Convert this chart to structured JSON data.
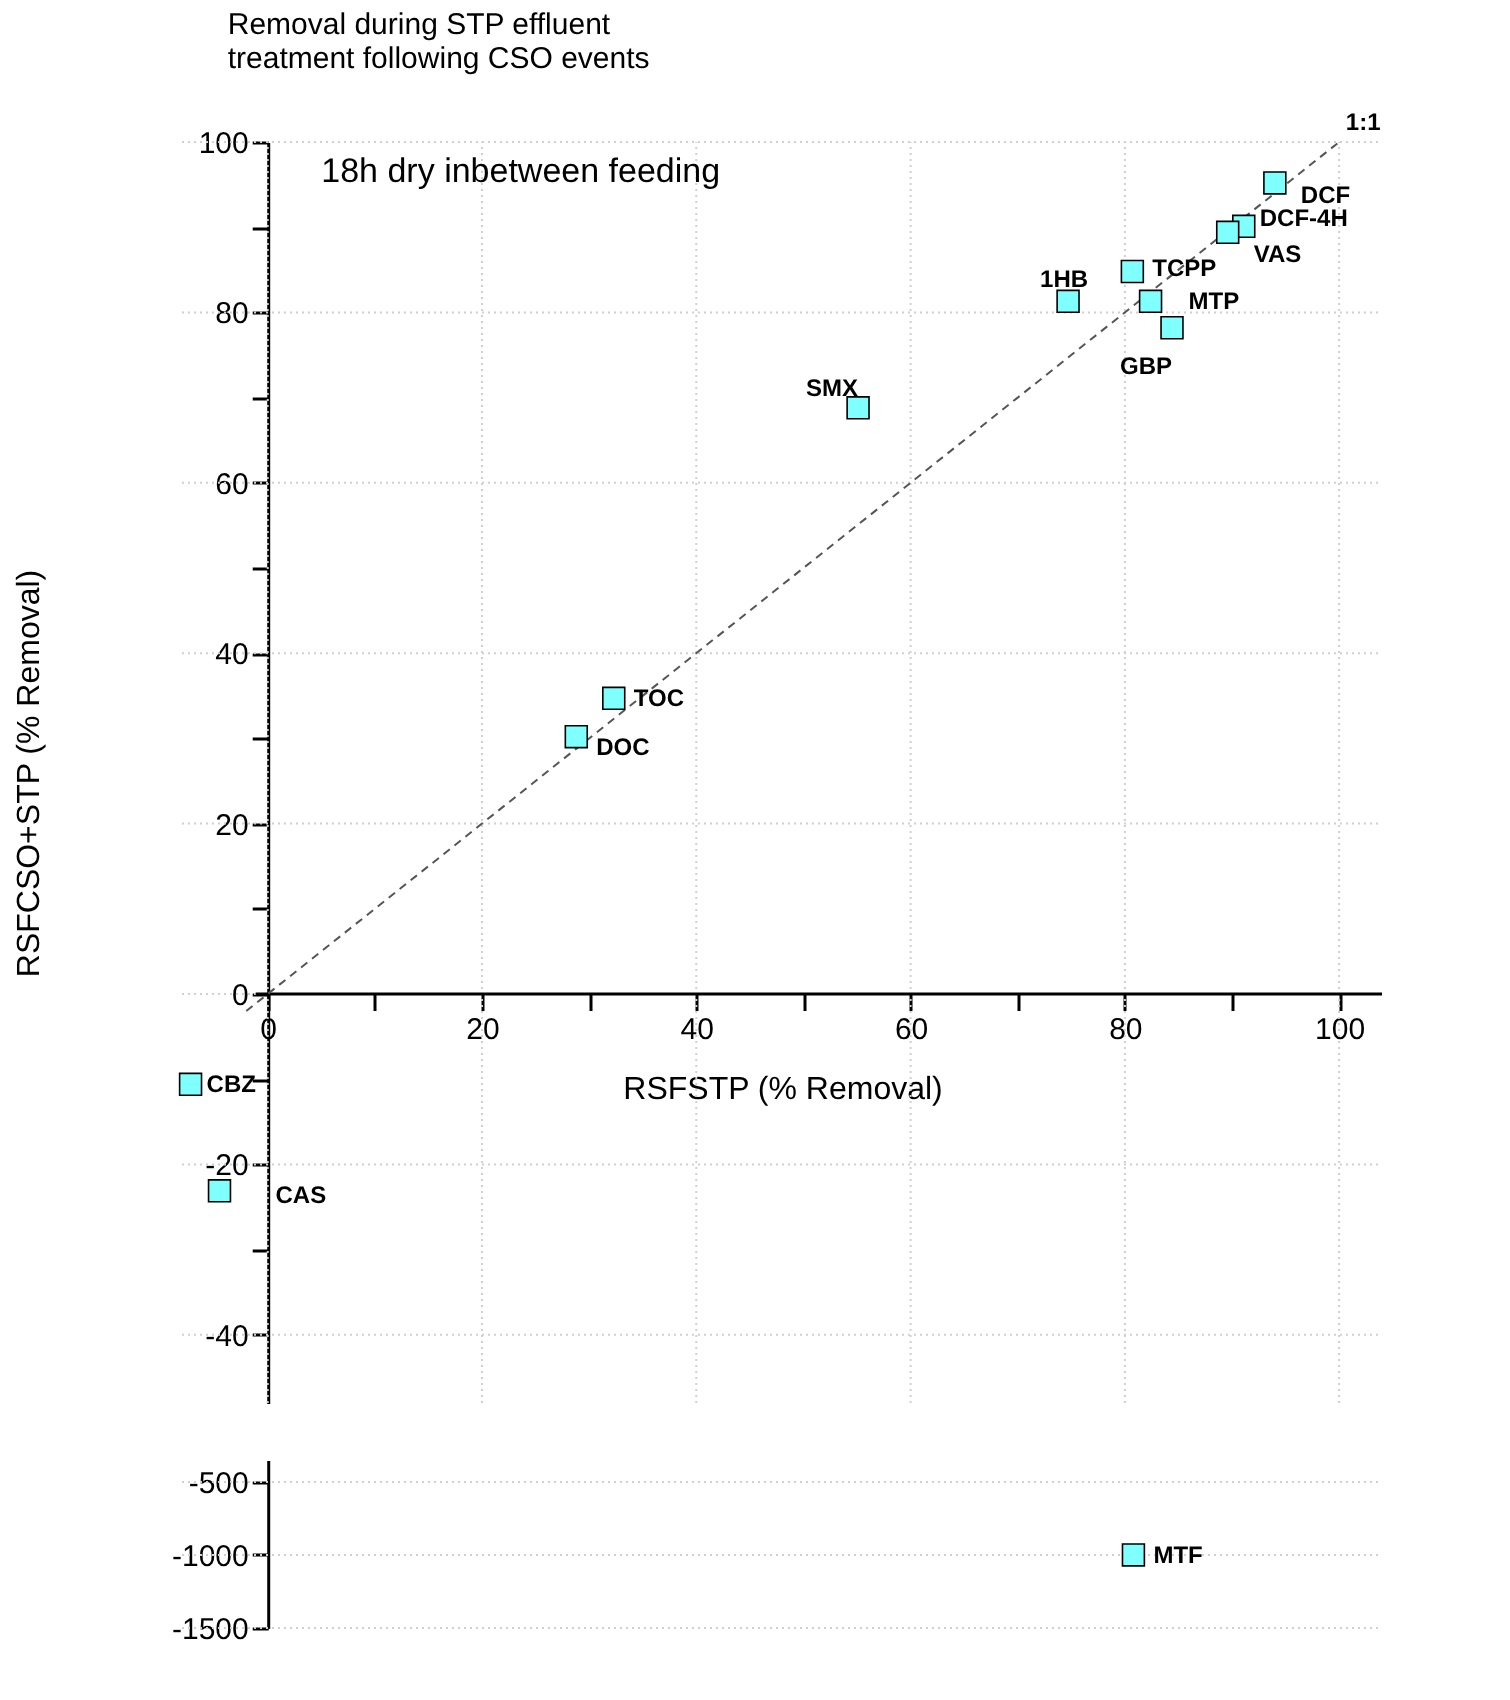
{
  "chart_data": [
    {
      "type": "scatter",
      "title": "Removal  during STP effluent\ntreatment following CSO events",
      "xlabel": "RSFSTP (% Removal)",
      "ylabel": "RSFCSO+STP (% Removal)",
      "xlim": [
        -8,
        104
      ],
      "ylim": [
        -48,
        100
      ],
      "xticks": [
        0,
        {
          "value": 10,
          "label": null
        },
        20,
        {
          "value": 30,
          "label": null
        },
        40,
        {
          "value": 50,
          "label": null
        },
        60,
        {
          "value": 70,
          "label": null
        },
        80,
        {
          "value": 90,
          "label": null
        },
        100
      ],
      "yticks": [
        -40,
        {
          "value": -30,
          "label": null
        },
        -20,
        {
          "value": -10,
          "label": null
        },
        0,
        {
          "value": 10,
          "label": null
        },
        20,
        {
          "value": 30,
          "label": null
        },
        40,
        {
          "value": 50,
          "label": null
        },
        60,
        {
          "value": 70,
          "label": null
        },
        80,
        {
          "value": 90,
          "label": null
        },
        100
      ],
      "grid": true,
      "series": [
        {
          "type": "line",
          "name": "1:1",
          "color": "#555555",
          "line_style": "dashed",
          "marker": "none",
          "x": [
            -2,
            100
          ],
          "values": [
            -2,
            100
          ]
        },
        {
          "type": "scatter",
          "color": "#80ffff",
          "marker": "square",
          "x": [
            94.0,
            91.1,
            89.6,
            80.7,
            74.7,
            82.4,
            84.4,
            55.1,
            32.3,
            28.8,
            -7.2,
            -4.5
          ],
          "values": [
            95.2,
            90.1,
            89.4,
            84.8,
            81.3,
            81.3,
            78.2,
            68.8,
            34.7,
            30.2,
            -10.6,
            -23.1
          ]
        }
      ],
      "annotations": [
        "18h dry inbetween feeding",
        {
          "text": "DCF",
          "x": 94.0,
          "y": 95.2
        },
        {
          "text": "DCF-4H",
          "x": 91.1,
          "y": 90.1
        },
        {
          "text": "VAS",
          "x": 89.6,
          "y": 89.4
        },
        {
          "text": "TCPP",
          "x": 80.7,
          "y": 84.8
        },
        {
          "text": "1HB",
          "x": 74.7,
          "y": 81.3
        },
        {
          "text": "MTP",
          "x": 82.4,
          "y": 81.3
        },
        {
          "text": "GBP",
          "x": 84.4,
          "y": 78.2
        },
        {
          "text": "SMX",
          "x": 55.1,
          "y": 68.8
        },
        {
          "text": "TOC",
          "x": 32.3,
          "y": 34.7
        },
        {
          "text": "DOC",
          "x": 28.8,
          "y": 30.2
        },
        {
          "text": "CBZ",
          "x": -7.2,
          "y": -10.6
        },
        {
          "text": "CAS",
          "x": -4.5,
          "y": -23.1
        }
      ]
    },
    {
      "type": "scatter",
      "tick_labels": "y",
      "xlim": [
        -8,
        104
      ],
      "ylim": [
        -1500,
        -350
      ],
      "yticks": [
        -1500,
        -1000,
        -500
      ],
      "grid": true,
      "series": [
        {
          "type": "scatter",
          "color": "#80ffff",
          "marker": "square",
          "x": [
            80.8
          ],
          "values": [
            -1000
          ]
        }
      ],
      "annotations": [
        {
          "text": "MTF",
          "x": 80.8,
          "y": -1000
        }
      ]
    }
  ]
}
